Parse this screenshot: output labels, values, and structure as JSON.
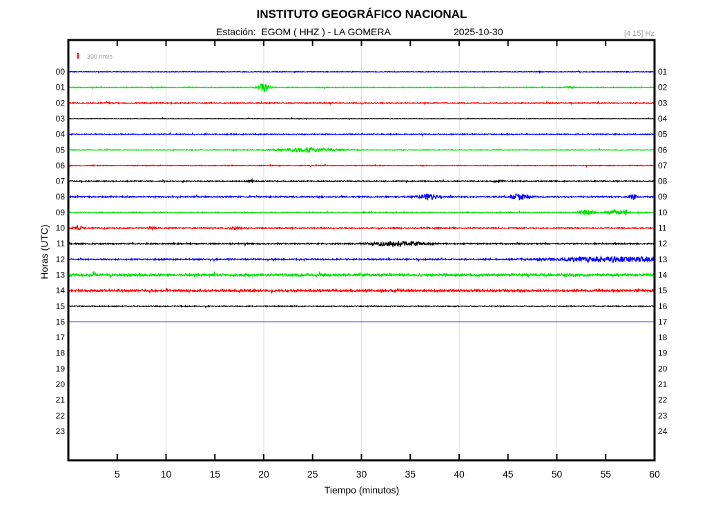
{
  "chart_data": {
    "type": "line",
    "title": "INSTITUTO GEOGRÁFICO NACIONAL",
    "subtitle_station": "Estación:  EGOM ( HHZ ) - LA GOMERA",
    "subtitle_date": "2025-10-30",
    "filter": "[4 15] Hz",
    "scale_label": "300 nm/s",
    "xlabel": "Tiempo (minutos)",
    "ylabel": "Horas (UTC)",
    "xlim": [
      0,
      60
    ],
    "x_ticks": [
      "5",
      "10",
      "15",
      "20",
      "25",
      "30",
      "35",
      "40",
      "45",
      "50",
      "55",
      "60"
    ],
    "left_hour_labels": [
      "00",
      "01",
      "02",
      "03",
      "04",
      "05",
      "06",
      "07",
      "08",
      "09",
      "10",
      "11",
      "12",
      "13",
      "14",
      "15",
      "16",
      "17",
      "18",
      "19",
      "20",
      "21",
      "22",
      "23"
    ],
    "right_hour_labels": [
      "01",
      "02",
      "03",
      "04",
      "05",
      "06",
      "07",
      "08",
      "09",
      "10",
      "11",
      "12",
      "13",
      "14",
      "15",
      "16",
      "17",
      "18",
      "19",
      "20",
      "21",
      "22",
      "23",
      "24"
    ],
    "grid": true,
    "colors": [
      "#0000ff",
      "#00e000",
      "#ff0000",
      "#000000"
    ],
    "scale_color": "#ff0000",
    "traces": [
      {
        "hour": 0,
        "noise": 0.8,
        "events": []
      },
      {
        "hour": 1,
        "noise": 0.8,
        "events": [
          {
            "minute": 20,
            "amp": 9,
            "dur": 0.6
          },
          {
            "minute": 51.2,
            "amp": 2,
            "dur": 0.4
          }
        ]
      },
      {
        "hour": 2,
        "noise": 1.0,
        "events": [
          {
            "minute": 4,
            "amp": 2.5,
            "dur": 0.3
          }
        ]
      },
      {
        "hour": 3,
        "noise": 0.5,
        "events": []
      },
      {
        "hour": 4,
        "noise": 1.0,
        "events": []
      },
      {
        "hour": 5,
        "noise": 0.7,
        "events": [
          {
            "minute": 24.5,
            "amp": 4,
            "dur": 3
          }
        ]
      },
      {
        "hour": 6,
        "noise": 0.8,
        "events": []
      },
      {
        "hour": 7,
        "noise": 1.1,
        "events": [
          {
            "minute": 18.7,
            "amp": 5,
            "dur": 0.2
          },
          {
            "minute": 44,
            "amp": 2,
            "dur": 0.5
          }
        ]
      },
      {
        "hour": 8,
        "noise": 1.3,
        "events": [
          {
            "minute": 36.8,
            "amp": 5,
            "dur": 1
          },
          {
            "minute": 46.3,
            "amp": 6,
            "dur": 1
          },
          {
            "minute": 57.8,
            "amp": 5,
            "dur": 0.3
          }
        ]
      },
      {
        "hour": 9,
        "noise": 1.0,
        "events": [
          {
            "minute": 53,
            "amp": 5,
            "dur": 0.8
          },
          {
            "minute": 56,
            "amp": 4,
            "dur": 0.8
          },
          {
            "minute": 57.1,
            "amp": 5,
            "dur": 0.2
          }
        ]
      },
      {
        "hour": 10,
        "noise": 1.2,
        "events": [
          {
            "minute": 1,
            "amp": 3,
            "dur": 0.4
          },
          {
            "minute": 8.5,
            "amp": 3,
            "dur": 0.3
          },
          {
            "minute": 17,
            "amp": 2.5,
            "dur": 0.5
          }
        ]
      },
      {
        "hour": 11,
        "noise": 1.3,
        "events": [
          {
            "minute": 34,
            "amp": 5,
            "dur": 2.5
          }
        ]
      },
      {
        "hour": 12,
        "noise": 1.3,
        "events": [
          {
            "minute": 56,
            "amp": 5,
            "dur": 6
          }
        ]
      },
      {
        "hour": 13,
        "noise": 2.5,
        "events": []
      },
      {
        "hour": 14,
        "noise": 2.2,
        "events": []
      },
      {
        "hour": 15,
        "noise": 1.0,
        "events": []
      },
      {
        "hour": 16,
        "noise": 0,
        "events": []
      }
    ]
  }
}
